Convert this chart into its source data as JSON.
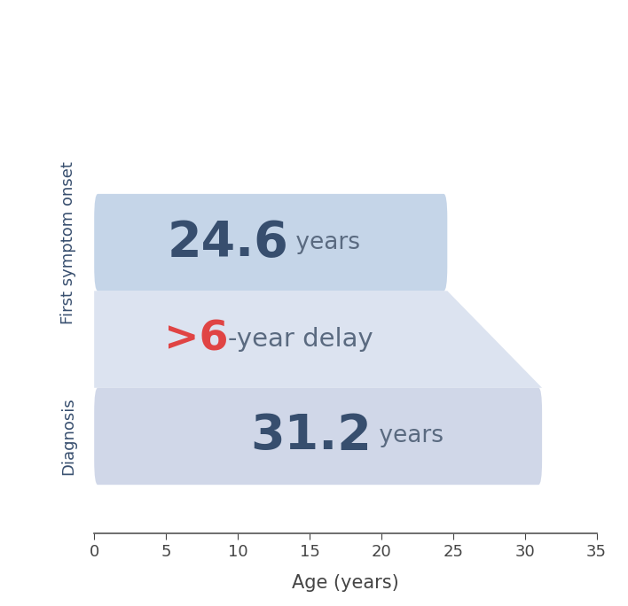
{
  "bar1_label": "First symptom onset",
  "bar2_label": "Diagnosis",
  "bar1_value": 24.6,
  "bar2_value": 31.2,
  "bar1_text_big": "24.6",
  "bar1_text_small": " years",
  "bar2_text_big": "31.2",
  "bar2_text_small": " years",
  "delay_text_symbol": ">",
  "delay_text_num": "6",
  "delay_text_rest": "-year delay",
  "xlim": [
    0,
    35
  ],
  "xticks": [
    0,
    5,
    10,
    15,
    20,
    25,
    30,
    35
  ],
  "xlabel": "Age (years)",
  "bar1_color": "#c5d5e8",
  "bar2_color": "#d0d7e8",
  "trapezoid_color": "#dce3f0",
  "big_num_color": "#374e6e",
  "small_text_color": "#5a6a80",
  "delay_color_red": "#e04444",
  "delay_color_gray": "#5a6a80",
  "ylabel_color": "#374e6e",
  "fig_width": 7.08,
  "fig_height": 6.84
}
